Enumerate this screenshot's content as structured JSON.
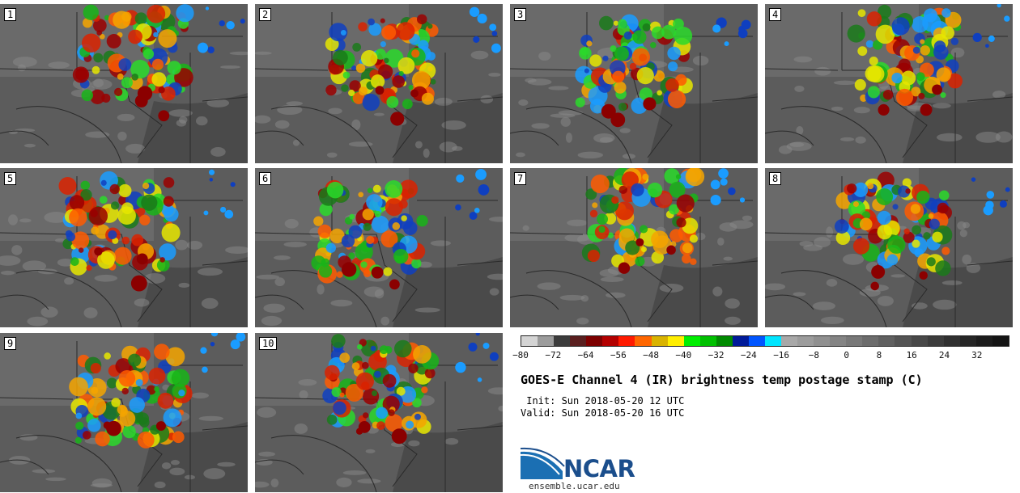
{
  "figure": {
    "title": "GOES-E Channel 4 (IR) brightness temp postage stamp (C)",
    "init_line": " Init: Sun 2018-05-20 12 UTC",
    "valid_line": "Valid: Sun 2018-05-20 16 UTC",
    "logo_text": "NCAR",
    "logo_url": "ensemble.ucar.edu"
  },
  "panels": [
    {
      "label": "1"
    },
    {
      "label": "2"
    },
    {
      "label": "3"
    },
    {
      "label": "4"
    },
    {
      "label": "5"
    },
    {
      "label": "6"
    },
    {
      "label": "7"
    },
    {
      "label": "8"
    },
    {
      "label": "9"
    },
    {
      "label": "10"
    }
  ],
  "colorbar": {
    "colors": [
      "#d4d4d4",
      "#9c9c9c",
      "#3c3c3c",
      "#5a1f1f",
      "#7d0000",
      "#b30000",
      "#ff1a00",
      "#ff6600",
      "#d9b300",
      "#ffee00",
      "#00ee00",
      "#00c000",
      "#008a00",
      "#001a99",
      "#0055ff",
      "#00e5ff",
      "#a8a8a8",
      "#9c9c9c",
      "#909090",
      "#848484",
      "#787878",
      "#6c6c6c",
      "#606060",
      "#545454",
      "#484848",
      "#3c3c3c",
      "#303030",
      "#262626",
      "#1c1c1c",
      "#141414"
    ],
    "tick_labels": [
      "−80",
      "−72",
      "−64",
      "−56",
      "−48",
      "−40",
      "−32",
      "−24",
      "−16",
      "−8",
      "0",
      "8",
      "16",
      "24",
      "32"
    ],
    "tick_values": [
      -80,
      -72,
      -64,
      -56,
      -48,
      -40,
      -32,
      -24,
      -16,
      -8,
      0,
      8,
      16,
      24,
      32
    ],
    "range": [
      -80,
      40
    ]
  }
}
